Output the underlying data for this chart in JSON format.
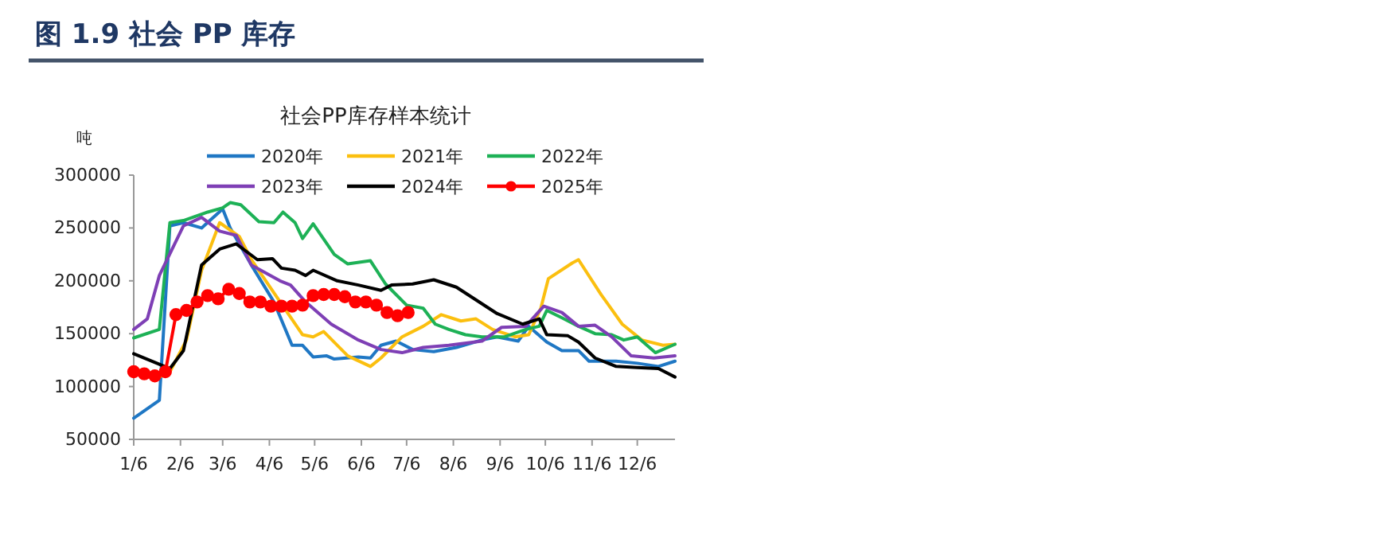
{
  "chart_data": {
    "type": "line",
    "title": "图 1.9 社会 PP 库存",
    "subtitle": "社会PP库存样本统计",
    "ylabel": "吨",
    "xlim": [
      "--01-06",
      "--12-31"
    ],
    "ylim": [
      50000,
      300000
    ],
    "xticks": [
      {
        "value": "--01-06",
        "label": "1/6"
      },
      {
        "value": "--02-06",
        "label": "2/6"
      },
      {
        "value": "--03-06",
        "label": "3/6"
      },
      {
        "value": "--04-06",
        "label": "4/6"
      },
      {
        "value": "--05-06",
        "label": "5/6"
      },
      {
        "value": "--06-06",
        "label": "6/6"
      },
      {
        "value": "--07-06",
        "label": "7/6"
      },
      {
        "value": "--08-06",
        "label": "8/6"
      },
      {
        "value": "--09-06",
        "label": "9/6"
      },
      {
        "value": "--10-06",
        "label": "10/6"
      },
      {
        "value": "--11-06",
        "label": "11/6"
      },
      {
        "value": "--12-06",
        "label": "12/6"
      }
    ],
    "yticks": [
      50000,
      100000,
      150000,
      200000,
      250000,
      300000
    ],
    "grid": false,
    "legend": "top",
    "marker": "none",
    "line_style": "solid",
    "series": [
      {
        "name": "2020年",
        "color": "#1f77c4",
        "x": [
          "--01-06",
          "--01-23",
          "--01-30",
          "--02-08",
          "--02-20",
          "--03-06",
          "--03-11",
          "--03-25",
          "--04-09",
          "--04-21",
          "--04-28",
          "--05-05",
          "--05-14",
          "--05-19",
          "--06-04",
          "--06-12",
          "--06-19",
          "--06-29",
          "--07-10",
          "--07-24",
          "--08-08",
          "--08-25",
          "--09-04",
          "--09-18",
          "--09-25",
          "--10-07",
          "--10-17",
          "--10-28",
          "--11-04",
          "--11-22",
          "--12-06",
          "--12-20",
          "--12-31"
        ],
        "values": [
          70000,
          87000,
          252000,
          255000,
          250000,
          268000,
          250000,
          215000,
          180000,
          139000,
          139000,
          128000,
          129000,
          126000,
          128000,
          127000,
          139000,
          143000,
          135000,
          133000,
          137000,
          144000,
          147000,
          143000,
          157000,
          142000,
          134000,
          134000,
          124000,
          124000,
          122000,
          119000,
          124000
        ]
      },
      {
        "name": "2021年",
        "color": "#fbbf0f",
        "x": [
          "--01-06",
          "--01-23",
          "--01-30",
          "--02-10",
          "--02-20",
          "--03-04",
          "--03-17",
          "--03-25",
          "--04-16",
          "--04-28",
          "--05-05",
          "--05-12",
          "--05-28",
          "--06-12",
          "--06-19",
          "--07-03",
          "--07-17",
          "--07-29",
          "--08-11",
          "--08-21",
          "--09-01",
          "--09-16",
          "--09-25",
          "--10-03",
          "--10-08",
          "--10-24",
          "--10-28",
          "--11-12",
          "--11-26",
          "--12-09",
          "--12-23",
          "--12-31"
        ],
        "values": [
          117000,
          109000,
          114000,
          144000,
          210000,
          255000,
          242000,
          220000,
          174000,
          149000,
          147000,
          152000,
          129000,
          119000,
          127000,
          147000,
          157000,
          168000,
          162000,
          164000,
          154000,
          147000,
          149000,
          174000,
          202000,
          217000,
          220000,
          187000,
          159000,
          144000,
          139000,
          140000
        ]
      },
      {
        "name": "2022年",
        "color": "#1db156",
        "x": [
          "--01-06",
          "--01-23",
          "--01-30",
          "--02-08",
          "--02-24",
          "--03-06",
          "--03-11",
          "--03-18",
          "--03-30",
          "--04-09",
          "--04-15",
          "--04-23",
          "--04-28",
          "--05-05",
          "--05-19",
          "--05-28",
          "--06-12",
          "--06-22",
          "--07-06",
          "--07-17",
          "--07-25",
          "--08-03",
          "--08-14",
          "--08-25",
          "--09-09",
          "--09-23",
          "--10-02",
          "--10-07",
          "--10-17",
          "--10-28",
          "--11-08",
          "--11-19",
          "--11-27",
          "--12-06",
          "--12-18",
          "--12-31"
        ],
        "values": [
          146000,
          154000,
          255000,
          257000,
          265000,
          269000,
          274000,
          272000,
          256000,
          255000,
          265000,
          255000,
          240000,
          254000,
          225000,
          216000,
          219000,
          197000,
          177000,
          174000,
          159000,
          154000,
          149000,
          147000,
          147000,
          154000,
          157000,
          172000,
          165000,
          157000,
          150000,
          149000,
          144000,
          147000,
          132000,
          140000
        ]
      },
      {
        "name": "2023年",
        "color": "#7e3fb5",
        "x": [
          "--01-06",
          "--01-15",
          "--01-23",
          "--02-08",
          "--02-20",
          "--03-04",
          "--03-15",
          "--03-25",
          "--04-13",
          "--04-20",
          "--04-30",
          "--05-17",
          "--06-04",
          "--06-19",
          "--07-03",
          "--07-17",
          "--08-03",
          "--08-25",
          "--09-07",
          "--09-23",
          "--10-05",
          "--10-17",
          "--10-28",
          "--11-08",
          "--11-19",
          "--12-02",
          "--12-17",
          "--12-31"
        ],
        "values": [
          154000,
          164000,
          205000,
          252000,
          260000,
          247000,
          243000,
          215000,
          200000,
          196000,
          180000,
          159000,
          144000,
          135000,
          132000,
          137000,
          139000,
          143000,
          156000,
          157000,
          176000,
          170000,
          157000,
          158000,
          147000,
          129000,
          127000,
          129000
        ]
      },
      {
        "name": "2024年",
        "color": "#000000",
        "x": [
          "--01-06",
          "--01-23",
          "--01-30",
          "--02-08",
          "--02-20",
          "--03-04",
          "--03-15",
          "--03-29",
          "--04-08",
          "--04-14",
          "--04-23",
          "--04-30",
          "--05-05",
          "--05-21",
          "--06-04",
          "--06-19",
          "--06-26",
          "--07-10",
          "--07-24",
          "--08-08",
          "--08-21",
          "--09-04",
          "--09-21",
          "--10-02",
          "--10-07",
          "--10-21",
          "--10-28",
          "--11-08",
          "--11-22",
          "--12-06",
          "--12-20",
          "--12-31"
        ],
        "values": [
          131000,
          121000,
          117000,
          134000,
          215000,
          230000,
          235000,
          220000,
          221000,
          212000,
          210000,
          205000,
          210000,
          200000,
          196000,
          191000,
          196000,
          197000,
          201000,
          194000,
          182000,
          169000,
          159000,
          164000,
          149000,
          148000,
          142000,
          127000,
          119000,
          118000,
          117000,
          109000
        ]
      },
      {
        "name": "2025年",
        "color": "#ff0000",
        "marker": "circle",
        "x": [
          "--01-06",
          "--01-13",
          "--01-20",
          "--01-27",
          "--02-03",
          "--02-10",
          "--02-17",
          "--02-24",
          "--03-03",
          "--03-10",
          "--03-17",
          "--03-24",
          "--03-31",
          "--04-07",
          "--04-14",
          "--04-21",
          "--04-28",
          "--05-05",
          "--05-12",
          "--05-19",
          "--05-26",
          "--06-02",
          "--06-09",
          "--06-16",
          "--06-23",
          "--06-30",
          "--07-07"
        ],
        "values": [
          114000,
          112000,
          110000,
          114000,
          168000,
          172000,
          180000,
          186000,
          183000,
          192000,
          188000,
          180000,
          180000,
          176000,
          176000,
          176000,
          177000,
          186000,
          187000,
          187000,
          185000,
          180000,
          180000,
          177000,
          170000,
          167000,
          170000
        ]
      }
    ]
  }
}
